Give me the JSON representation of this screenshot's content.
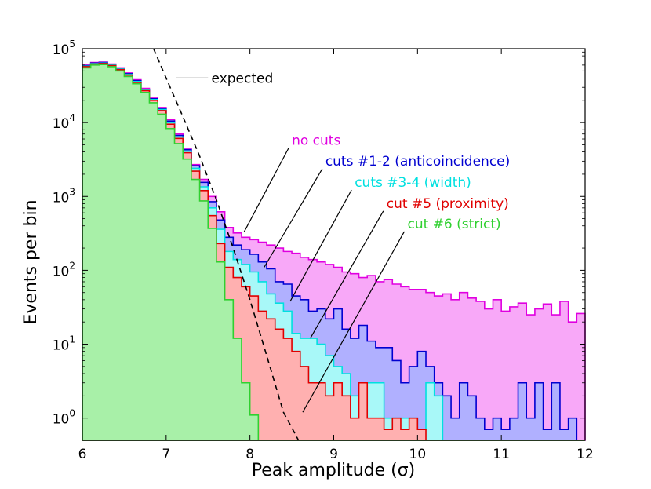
{
  "chart_data": {
    "type": "step-histogram",
    "xlabel": "Peak amplitude (σ)",
    "ylabel": "Events per bin",
    "xlim": [
      6,
      12
    ],
    "ylim": [
      0.5,
      100000
    ],
    "yscale": "log",
    "x_ticks": [
      "6",
      "7",
      "8",
      "9",
      "10",
      "11",
      "12"
    ],
    "x_tick_values": [
      6,
      7,
      8,
      9,
      10,
      11,
      12
    ],
    "y_ticks": [
      {
        "base": "10",
        "exp": "0",
        "value": 1
      },
      {
        "base": "10",
        "exp": "1",
        "value": 10
      },
      {
        "base": "10",
        "exp": "2",
        "value": 100
      },
      {
        "base": "10",
        "exp": "3",
        "value": 1000
      },
      {
        "base": "10",
        "exp": "4",
        "value": 10000
      },
      {
        "base": "10",
        "exp": "5",
        "value": 100000
      }
    ],
    "bin_start": 6.0,
    "bin_width": 0.1,
    "series": [
      {
        "name": "no cuts",
        "label": "no cuts",
        "color": "#e000e0",
        "fill": "#f8a8f8",
        "values": [
          60000,
          65000,
          66000,
          62000,
          55000,
          47000,
          38000,
          29000,
          22000,
          16000,
          11000,
          7000,
          4500,
          2700,
          1700,
          1000,
          620,
          380,
          320,
          280,
          260,
          240,
          220,
          200,
          180,
          170,
          150,
          140,
          130,
          120,
          110,
          95,
          90,
          80,
          85,
          70,
          75,
          65,
          60,
          55,
          55,
          50,
          45,
          48,
          40,
          50,
          42,
          38,
          30,
          40,
          28,
          32,
          36,
          25,
          30,
          35,
          25,
          38,
          20,
          26
        ]
      },
      {
        "name": "cuts #1-2 (anticoincidence)",
        "label": "cuts #1-2 (anticoincidence)",
        "color": "#0000d0",
        "fill": "#b0b0ff",
        "values": [
          59000,
          64000,
          65000,
          61000,
          54000,
          46000,
          37000,
          28000,
          21000,
          15500,
          10500,
          6700,
          4300,
          2600,
          1550,
          850,
          480,
          280,
          220,
          190,
          165,
          130,
          105,
          70,
          65,
          45,
          40,
          28,
          30,
          22,
          30,
          16,
          12,
          18,
          11,
          9,
          9,
          6,
          3,
          5,
          8,
          5,
          3,
          2,
          1,
          3,
          2,
          1,
          0.7,
          1,
          0.7,
          1,
          3,
          1,
          3,
          0.7,
          3,
          0.7,
          1,
          0.5
        ]
      },
      {
        "name": "cuts #3-4 (width)",
        "label": "cuts #3-4 (width)",
        "color": "#00e0e0",
        "fill": "#a8f8f8",
        "values": [
          58000,
          63000,
          64000,
          60000,
          53000,
          45000,
          36000,
          27500,
          20500,
          15000,
          10000,
          6400,
          4100,
          2400,
          1350,
          700,
          360,
          180,
          140,
          120,
          95,
          70,
          48,
          36,
          28,
          14,
          12,
          12,
          10,
          7,
          5,
          4,
          2,
          1.5,
          3,
          3,
          1,
          1,
          1,
          1,
          0.7,
          3,
          2,
          0.5,
          0.5,
          0.5,
          0.5,
          0.5,
          0.5,
          0.5,
          0.5,
          0.5,
          0.5,
          0.5,
          0.5,
          0.5,
          0.5,
          0.5,
          0.5,
          0.5
        ]
      },
      {
        "name": "cut #5 (proximity)",
        "label": "cut #5 (proximity)",
        "color": "#e00000",
        "fill": "#ffb0b0",
        "values": [
          57000,
          62000,
          63000,
          59000,
          52000,
          44000,
          35000,
          27000,
          20000,
          14500,
          9500,
          6100,
          3900,
          2200,
          1200,
          550,
          230,
          110,
          80,
          60,
          45,
          28,
          22,
          16,
          12,
          8,
          5,
          3,
          3,
          2,
          3,
          2,
          1,
          3,
          1,
          1,
          0.7,
          1,
          0.7,
          1,
          0.7,
          0.5,
          0.5,
          0.5,
          0.5,
          0.5,
          0.5,
          0.5,
          0.5,
          0.5,
          0.5,
          0.5,
          0.5,
          0.5,
          0.5,
          0.5,
          0.5,
          0.5,
          0.5,
          0.5
        ]
      },
      {
        "name": "cut #6 (strict)",
        "label": "cut #6 (strict)",
        "color": "#30d030",
        "fill": "#a8f0a8",
        "values": [
          55000,
          60000,
          61000,
          57000,
          50000,
          42000,
          33500,
          25500,
          18500,
          13000,
          8300,
          5200,
          3200,
          1700,
          870,
          370,
          130,
          40,
          12,
          3,
          1.1,
          0.5,
          0.5,
          0.5,
          0.5,
          0.5,
          0.5,
          0.5,
          0.5,
          0.5,
          0.5,
          0.5,
          0.5,
          0.5,
          0.5,
          0.5,
          0.5,
          0.5,
          0.5,
          0.5,
          0.5,
          0.5,
          0.5,
          0.5,
          0.5,
          0.5,
          0.5,
          0.5,
          0.5,
          0.5,
          0.5,
          0.5,
          0.5,
          0.5,
          0.5,
          0.5,
          0.5,
          0.5,
          0.5,
          0.5
        ]
      }
    ],
    "expected": {
      "label": "expected",
      "x": [
        6.85,
        7.0,
        7.2,
        7.4,
        7.6,
        7.8,
        8.0,
        8.2,
        8.4,
        8.58
      ],
      "y": [
        100000,
        40000,
        12000,
        3500,
        900,
        200,
        40,
        7,
        1.2,
        0.5
      ]
    },
    "annotations": [
      {
        "series": 0,
        "text_x": 8.5,
        "text_y": 5000,
        "tip_x": 7.93,
        "tip_y": 330
      },
      {
        "series": 1,
        "text_x": 8.9,
        "text_y": 2600,
        "tip_x": 8.17,
        "tip_y": 110
      },
      {
        "series": 2,
        "text_x": 9.25,
        "text_y": 1350,
        "tip_x": 8.48,
        "tip_y": 38
      },
      {
        "series": 3,
        "text_x": 9.63,
        "text_y": 700,
        "tip_x": 8.72,
        "tip_y": 12
      },
      {
        "series": 4,
        "text_x": 9.88,
        "text_y": 370,
        "tip_x": 8.63,
        "tip_y": 1.2
      }
    ]
  }
}
